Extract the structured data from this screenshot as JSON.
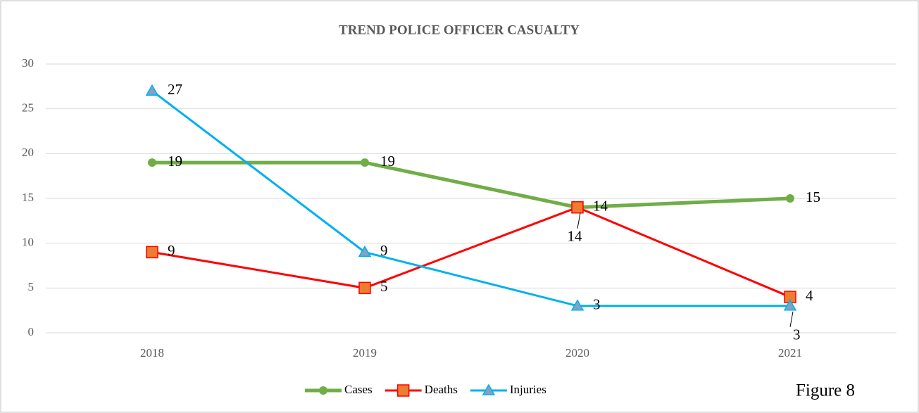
{
  "chart_data": {
    "type": "line",
    "title": "TREND POLICE OFFICER CASUALTY",
    "categories": [
      "2018",
      "2019",
      "2020",
      "2021"
    ],
    "series": [
      {
        "name": "Cases",
        "color": "#70ad47",
        "marker": "circle",
        "values": [
          19,
          19,
          14,
          15
        ]
      },
      {
        "name": "Deaths",
        "color": "#ff0000",
        "marker": "square",
        "values": [
          9,
          5,
          14,
          4
        ]
      },
      {
        "name": "Injuries",
        "color": "#00b0f0",
        "marker": "triangle",
        "values": [
          27,
          9,
          3,
          3
        ]
      }
    ],
    "ylim": [
      0,
      30
    ],
    "yticks": [
      0,
      5,
      10,
      15,
      20,
      25,
      30
    ],
    "grid": true,
    "legend": "bottom",
    "annotation": "Figure 8"
  }
}
